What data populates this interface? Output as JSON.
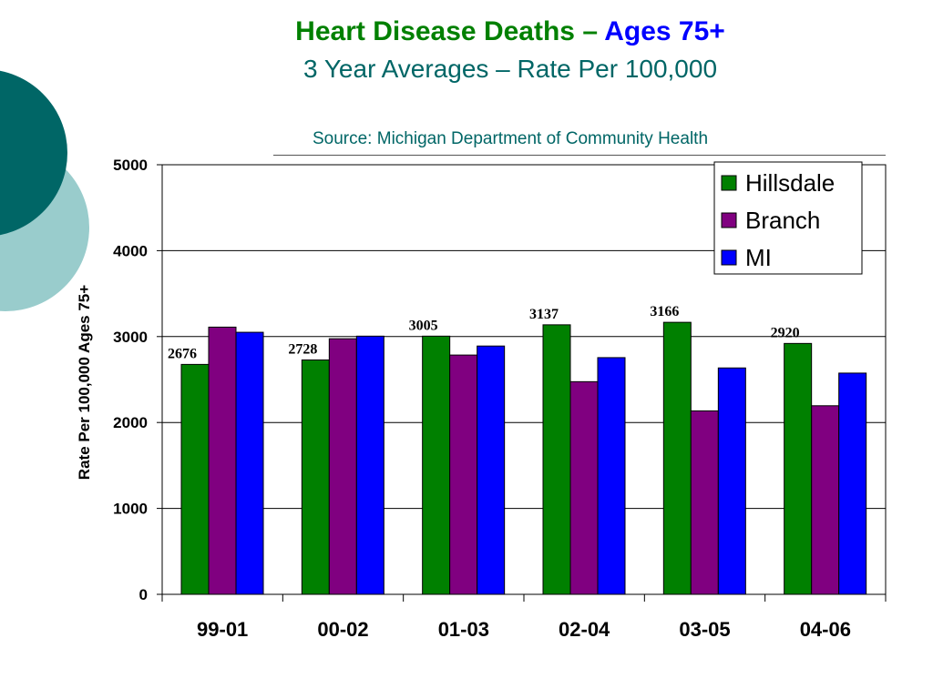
{
  "title": {
    "prefix": "Heart Disease Deaths – ",
    "accent": "Ages 75+",
    "subtitle": "3 Year Averages – Rate Per 100,000",
    "source": "Source: Michigan Department of Community Health"
  },
  "colors": {
    "title_green": "#008000",
    "title_blue": "#0000ff",
    "teal_text": "#006666",
    "deco_dark": "#006666",
    "deco_light": "#99cccc"
  },
  "chart_data": {
    "type": "bar",
    "title": "Heart Disease Deaths – Ages 75+",
    "subtitle": "3 Year Averages – Rate Per 100,000",
    "ylabel": "Rate Per 100,000 Ages 75+",
    "xlabel": "",
    "ylim": [
      0,
      5000
    ],
    "yticks": [
      0,
      1000,
      2000,
      3000,
      4000,
      5000
    ],
    "grid": true,
    "legend_position": "top-right",
    "categories": [
      "99-01",
      "00-02",
      "01-03",
      "02-04",
      "03-05",
      "04-06"
    ],
    "series": [
      {
        "name": "Hillsdale",
        "color": "#008000",
        "values": [
          2676,
          2728,
          3005,
          3137,
          3166,
          2920
        ],
        "data_labels": true
      },
      {
        "name": "Branch",
        "color": "#800080",
        "values": [
          3110,
          2975,
          2785,
          2475,
          2135,
          2195
        ],
        "data_labels": false
      },
      {
        "name": "MI",
        "color": "#0000ff",
        "values": [
          3050,
          3005,
          2890,
          2755,
          2635,
          2575
        ],
        "data_labels": false
      }
    ]
  }
}
